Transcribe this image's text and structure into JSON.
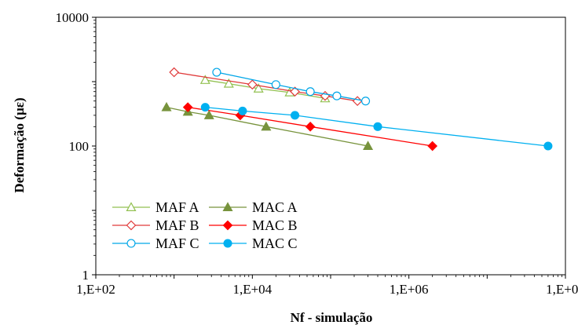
{
  "chart_data": {
    "type": "line",
    "title": "",
    "xlabel": "Nf - simulação",
    "ylabel": "Deformação (µε)",
    "x_scale": "log",
    "y_scale": "log",
    "xlim": [
      100,
      100000000
    ],
    "ylim": [
      1,
      10000
    ],
    "x_ticks": [
      100,
      10000,
      1000000,
      100000000
    ],
    "x_tick_labels": [
      "1,E+02",
      "1,E+04",
      "1,E+06",
      "1,E+08"
    ],
    "y_ticks": [
      1,
      100,
      10000
    ],
    "y_tick_labels": [
      "1",
      "100",
      "10000"
    ],
    "grid": false,
    "legend_position": "bottom-left",
    "series": [
      {
        "name": "MAF A",
        "color": "#92c050",
        "marker": "triangle-open",
        "x": [
          2500,
          5000,
          12000,
          30000,
          85000
        ],
        "y": [
          1060,
          930,
          780,
          680,
          550
        ]
      },
      {
        "name": "MAC A",
        "color": "#77933c",
        "marker": "triangle-filled",
        "x": [
          800,
          1500,
          2800,
          15000,
          300000
        ],
        "y": [
          400,
          340,
          300,
          200,
          100
        ]
      },
      {
        "name": "MAF B",
        "color": "#e03a3a",
        "marker": "diamond-open",
        "x": [
          1000,
          10000,
          35000,
          85000,
          220000
        ],
        "y": [
          1400,
          900,
          700,
          600,
          500
        ]
      },
      {
        "name": "MAC B",
        "color": "#ff0000",
        "marker": "diamond-filled",
        "x": [
          1500,
          7000,
          55000,
          2000000
        ],
        "y": [
          400,
          300,
          200,
          100
        ]
      },
      {
        "name": "MAF C",
        "color": "#00a6e8",
        "marker": "circle-open",
        "x": [
          3500,
          20000,
          55000,
          120000,
          280000
        ],
        "y": [
          1400,
          900,
          700,
          600,
          500
        ]
      },
      {
        "name": "MAC C",
        "color": "#00b0f0",
        "marker": "circle-filled",
        "x": [
          2500,
          7500,
          35000,
          400000,
          60000000
        ],
        "y": [
          400,
          350,
          300,
          200,
          100
        ]
      }
    ]
  }
}
